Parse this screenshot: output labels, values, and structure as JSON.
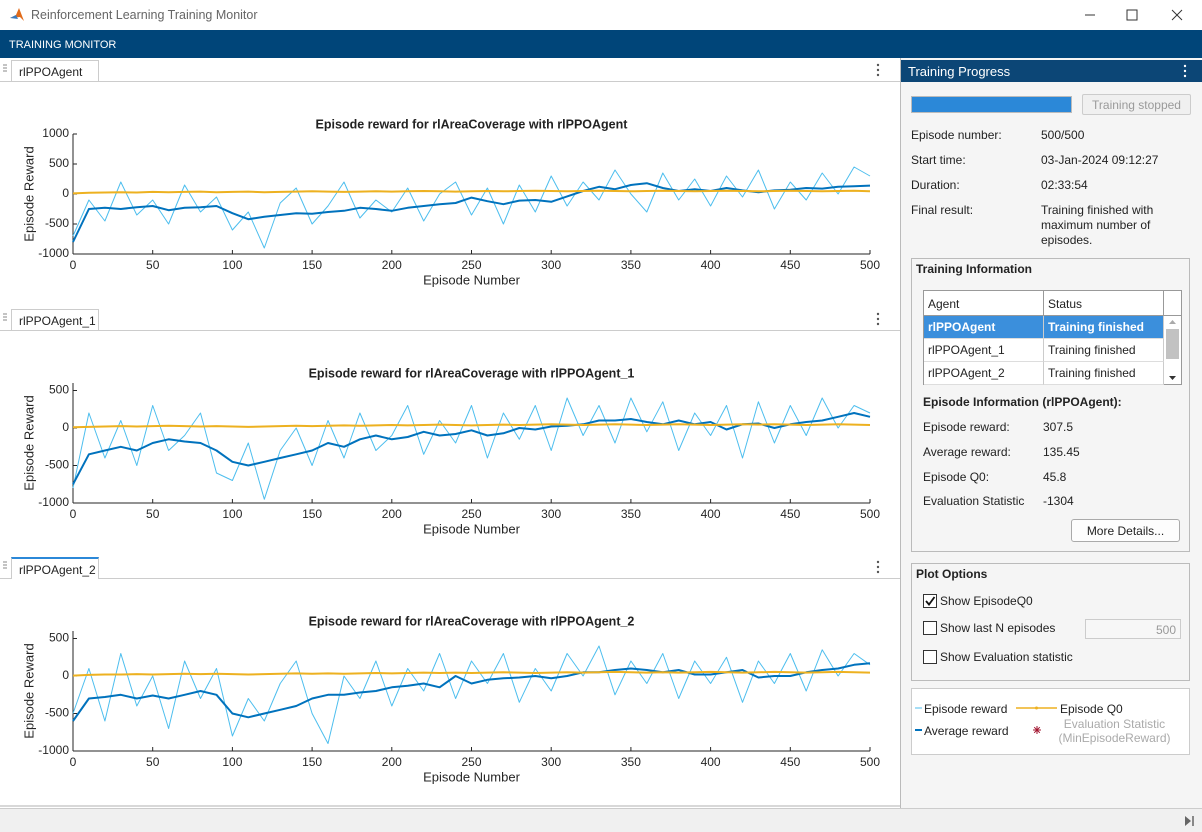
{
  "window": {
    "title": "Reinforcement Learning Training Monitor"
  },
  "toolstrip": {
    "title": "TRAINING MONITOR"
  },
  "tabs": [
    "rlPPOAgent",
    "rlPPOAgent_1",
    "rlPPOAgent_2"
  ],
  "chart_data": [
    {
      "type": "line",
      "title": "Episode reward for rlAreaCoverage with rlPPOAgent",
      "x_label": "Episode Number",
      "y_label": "Episode Reward",
      "x": [
        0,
        10,
        20,
        30,
        40,
        50,
        60,
        70,
        80,
        90,
        100,
        110,
        120,
        130,
        140,
        150,
        160,
        170,
        180,
        190,
        200,
        210,
        220,
        230,
        240,
        250,
        260,
        270,
        280,
        290,
        300,
        310,
        320,
        330,
        340,
        350,
        360,
        370,
        380,
        390,
        400,
        410,
        420,
        430,
        440,
        450,
        460,
        470,
        480,
        490,
        500
      ],
      "xlim": [
        0,
        500
      ],
      "xticks": [
        0,
        50,
        100,
        150,
        200,
        250,
        300,
        350,
        400,
        450,
        500
      ],
      "ylim": [
        -1000,
        1000
      ],
      "yticks": [
        -1000,
        -500,
        0,
        500,
        1000
      ],
      "series": [
        {
          "name": "Episode reward",
          "color": "#4dbeee",
          "values": [
            -700,
            -100,
            -450,
            200,
            -350,
            -100,
            -500,
            150,
            -300,
            -50,
            -600,
            -300,
            -900,
            -150,
            100,
            -500,
            -200,
            200,
            -400,
            -100,
            -300,
            100,
            -450,
            0,
            200,
            -350,
            100,
            -500,
            150,
            -300,
            300,
            -200,
            200,
            -100,
            400,
            0,
            -300,
            350,
            -100,
            250,
            -200,
            300,
            -50,
            400,
            -250,
            200,
            -100,
            350,
            0,
            450,
            300
          ]
        },
        {
          "name": "Average reward",
          "color": "#0072bd",
          "values": [
            -800,
            -250,
            -230,
            -250,
            -220,
            -200,
            -270,
            -230,
            -220,
            -200,
            -320,
            -420,
            -380,
            -350,
            -320,
            -330,
            -300,
            -280,
            -230,
            -250,
            -280,
            -230,
            -200,
            -170,
            -150,
            -60,
            -120,
            -170,
            -110,
            -100,
            -130,
            -40,
            50,
            120,
            80,
            150,
            180,
            100,
            50,
            80,
            50,
            100,
            60,
            30,
            60,
            70,
            100,
            90,
            120,
            130,
            140
          ]
        },
        {
          "name": "Episode Q0",
          "color": "#edb120",
          "values": [
            10,
            20,
            25,
            30,
            25,
            35,
            30,
            35,
            40,
            30,
            35,
            40,
            30,
            35,
            40,
            45,
            40,
            35,
            40,
            45,
            40,
            45,
            50,
            45,
            40,
            45,
            50,
            45,
            50,
            55,
            50,
            45,
            50,
            55,
            50,
            45,
            50,
            55,
            50,
            45,
            50,
            55,
            50,
            45,
            50,
            55,
            50,
            45,
            50,
            55,
            45
          ]
        }
      ]
    },
    {
      "type": "line",
      "title": "Episode reward for rlAreaCoverage with rlPPOAgent_1",
      "x_label": "Episode Number",
      "y_label": "Episode Reward",
      "x": [
        0,
        10,
        20,
        30,
        40,
        50,
        60,
        70,
        80,
        90,
        100,
        110,
        120,
        130,
        140,
        150,
        160,
        170,
        180,
        190,
        200,
        210,
        220,
        230,
        240,
        250,
        260,
        270,
        280,
        290,
        300,
        310,
        320,
        330,
        340,
        350,
        360,
        370,
        380,
        390,
        400,
        410,
        420,
        430,
        440,
        450,
        460,
        470,
        480,
        490,
        500
      ],
      "xlim": [
        0,
        500
      ],
      "xticks": [
        0,
        50,
        100,
        150,
        200,
        250,
        300,
        350,
        400,
        450,
        500
      ],
      "ylim": [
        -1000,
        600
      ],
      "yticks": [
        -1000,
        -500,
        0,
        500
      ],
      "series": [
        {
          "name": "Episode reward",
          "color": "#4dbeee",
          "values": [
            -800,
            200,
            -400,
            100,
            -500,
            300,
            -300,
            -100,
            200,
            -600,
            -700,
            -200,
            -950,
            -300,
            0,
            -500,
            100,
            -400,
            200,
            -300,
            -100,
            300,
            -350,
            100,
            -200,
            300,
            -400,
            200,
            -150,
            300,
            -300,
            400,
            -100,
            300,
            -200,
            400,
            -50,
            350,
            -300,
            200,
            -100,
            300,
            -400,
            350,
            -200,
            300,
            -100,
            400,
            0,
            300,
            200
          ]
        },
        {
          "name": "Average reward",
          "color": "#0072bd",
          "values": [
            -750,
            -350,
            -300,
            -250,
            -300,
            -200,
            -150,
            -180,
            -200,
            -300,
            -450,
            -500,
            -450,
            -400,
            -350,
            -300,
            -200,
            -250,
            -150,
            -100,
            -150,
            -120,
            -50,
            -100,
            -80,
            -30,
            -100,
            -70,
            0,
            -20,
            20,
            30,
            50,
            100,
            100,
            120,
            80,
            50,
            100,
            50,
            80,
            -20,
            50,
            60,
            0,
            50,
            80,
            100,
            150,
            200,
            150
          ]
        },
        {
          "name": "Episode Q0",
          "color": "#edb120",
          "values": [
            10,
            15,
            20,
            25,
            20,
            25,
            30,
            25,
            20,
            25,
            20,
            15,
            20,
            25,
            30,
            25,
            30,
            35,
            30,
            35,
            40,
            35,
            40,
            45,
            40,
            35,
            40,
            45,
            40,
            45,
            50,
            45,
            40,
            45,
            50,
            45,
            40,
            45,
            50,
            45,
            40,
            45,
            50,
            45,
            50,
            45,
            40,
            45,
            50,
            45,
            40
          ]
        }
      ]
    },
    {
      "type": "line",
      "title": "Episode reward for rlAreaCoverage with rlPPOAgent_2",
      "x_label": "Episode Number",
      "y_label": "Episode Reward",
      "x": [
        0,
        10,
        20,
        30,
        40,
        50,
        60,
        70,
        80,
        90,
        100,
        110,
        120,
        130,
        140,
        150,
        160,
        170,
        180,
        190,
        200,
        210,
        220,
        230,
        240,
        250,
        260,
        270,
        280,
        290,
        300,
        310,
        320,
        330,
        340,
        350,
        360,
        370,
        380,
        390,
        400,
        410,
        420,
        430,
        440,
        450,
        460,
        470,
        480,
        490,
        500
      ],
      "xlim": [
        0,
        500
      ],
      "xticks": [
        0,
        50,
        100,
        150,
        200,
        250,
        300,
        350,
        400,
        450,
        500
      ],
      "ylim": [
        -1000,
        600
      ],
      "yticks": [
        -1000,
        -500,
        0,
        500
      ],
      "series": [
        {
          "name": "Episode reward",
          "color": "#4dbeee",
          "values": [
            -500,
            100,
            -600,
            300,
            -400,
            0,
            -700,
            200,
            -300,
            100,
            -800,
            -300,
            -600,
            -100,
            200,
            -500,
            -900,
            0,
            -300,
            200,
            -400,
            100,
            -200,
            300,
            -300,
            200,
            -100,
            300,
            -350,
            100,
            -200,
            300,
            0,
            400,
            -250,
            200,
            -100,
            300,
            -300,
            200,
            -100,
            250,
            -350,
            200,
            -100,
            300,
            -200,
            350,
            0,
            300,
            150
          ]
        },
        {
          "name": "Average reward",
          "color": "#0072bd",
          "values": [
            -600,
            -300,
            -280,
            -250,
            -300,
            -260,
            -300,
            -250,
            -200,
            -250,
            -500,
            -550,
            -500,
            -450,
            -400,
            -300,
            -250,
            -250,
            -220,
            -200,
            -150,
            -130,
            -100,
            -150,
            0,
            -100,
            -50,
            -30,
            -20,
            0,
            -30,
            0,
            50,
            50,
            80,
            100,
            80,
            50,
            80,
            20,
            20,
            50,
            80,
            -20,
            0,
            0,
            50,
            80,
            100,
            150,
            170
          ]
        },
        {
          "name": "Episode Q0",
          "color": "#edb120",
          "values": [
            5,
            15,
            20,
            20,
            25,
            20,
            25,
            30,
            25,
            30,
            25,
            20,
            25,
            30,
            35,
            30,
            35,
            30,
            35,
            40,
            35,
            40,
            45,
            40,
            45,
            40,
            45,
            50,
            45,
            40,
            45,
            50,
            45,
            50,
            55,
            50,
            45,
            50,
            45,
            50,
            55,
            50,
            45,
            50,
            55,
            50,
            45,
            50,
            55,
            50,
            45
          ]
        }
      ]
    }
  ],
  "progress": {
    "title": "Training Progress",
    "percent": 100,
    "button": "Training stopped",
    "rows": [
      {
        "label": "Episode number:",
        "value": "500/500"
      },
      {
        "label": "Start time:",
        "value": "03-Jan-2024 09:12:27"
      },
      {
        "label": "Duration:",
        "value": "02:33:54"
      },
      {
        "label": "Final result:",
        "value": "Training finished with maximum number of episodes."
      }
    ]
  },
  "training_info": {
    "title": "Training Information",
    "columns": [
      "Agent",
      "Status"
    ],
    "rows": [
      [
        "rlPPOAgent",
        "Training finished"
      ],
      [
        "rlPPOAgent_1",
        "Training finished"
      ],
      [
        "rlPPOAgent_2",
        "Training finished"
      ]
    ],
    "selected_row": 0,
    "episode_info_title": "Episode Information (rlPPOAgent):",
    "episode_info": [
      {
        "label": "Episode reward:",
        "value": "307.5"
      },
      {
        "label": "Average reward:",
        "value": "135.45"
      },
      {
        "label": "Episode Q0:",
        "value": "45.8"
      },
      {
        "label": "Evaluation Statistic",
        "value": "-1304"
      }
    ],
    "button": "More Details..."
  },
  "plot_options": {
    "title": "Plot Options",
    "options": [
      {
        "label": "Show EpisodeQ0",
        "checked": true
      },
      {
        "label": "Show last N episodes",
        "checked": false,
        "value": 500
      },
      {
        "label": "Show Evaluation statistic",
        "checked": false
      }
    ]
  },
  "legend": {
    "extra": {
      "label": "Evaluation Statistic (MinEpisodeReward)",
      "color": "#a2142f"
    }
  }
}
